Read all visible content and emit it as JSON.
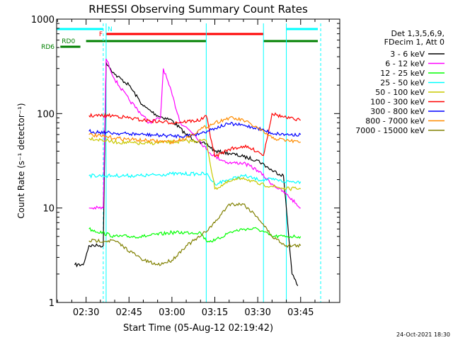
{
  "chart_data": {
    "type": "line",
    "title": "RHESSI Observing Summary Count Rates",
    "xlabel": "Start Time (05-Aug-12 02:19:42)",
    "ylabel": "Count Rate (s⁻¹ detector⁻¹)",
    "y_scale": "log",
    "ylim": [
      1,
      1000
    ],
    "xlim": [
      "02:19:42",
      "03:58:40"
    ],
    "x_ticks": [
      "02:30",
      "02:45",
      "03:00",
      "03:15",
      "03:30",
      "03:45"
    ],
    "y_ticks": [
      "1",
      "10",
      "100",
      "1000"
    ],
    "legend_header": [
      "Det 1,3,5,6,9,",
      "FDecim 1, Att 0"
    ],
    "legend_position": "right",
    "timestamp": "24-Oct-2021 18:30",
    "series": [
      {
        "name": "3 - 6 keV",
        "color": "#000000",
        "x": [
          "02:26:00",
          "02:29:00",
          "02:31:00",
          "02:34:00",
          "02:36:00",
          "02:37:00",
          "02:40:00",
          "02:45:00",
          "02:50:00",
          "02:55:00",
          "03:00:00",
          "03:05:00",
          "03:10:00",
          "03:12:00",
          "03:15:00",
          "03:20:00",
          "03:25:00",
          "03:30:00",
          "03:35:00",
          "03:39:00",
          "03:42:00",
          "03:44:00"
        ],
        "y": [
          2.5,
          2.5,
          4,
          4,
          4,
          350,
          260,
          200,
          120,
          95,
          85,
          60,
          48,
          48,
          40,
          38,
          35,
          32,
          25,
          22,
          2,
          1.5
        ]
      },
      {
        "name": "6 - 12 keV",
        "color": "#ff00ff",
        "x": [
          "02:31:00",
          "02:36:00",
          "02:37:00",
          "02:40:00",
          "02:45:00",
          "02:52:00",
          "02:56:00",
          "02:57:00",
          "02:59:00",
          "03:03:00",
          "03:08:00",
          "03:12:00",
          "03:15:00",
          "03:20:00",
          "03:25:00",
          "03:30:00",
          "03:35:00",
          "03:40:00",
          "03:45:00"
        ],
        "y": [
          10,
          10,
          380,
          230,
          140,
          80,
          90,
          300,
          200,
          80,
          60,
          42,
          35,
          30,
          30,
          25,
          18,
          14,
          10
        ]
      },
      {
        "name": "12 - 25 keV",
        "color": "#00ff00",
        "x": [
          "02:31:00",
          "02:40:00",
          "02:50:00",
          "03:00:00",
          "03:10:00",
          "03:12:00",
          "03:15:00",
          "03:20:00",
          "03:25:00",
          "03:30:00",
          "03:35:00",
          "03:40:00",
          "03:45:00"
        ],
        "y": [
          6,
          5,
          5,
          5.5,
          5.5,
          4.5,
          4.5,
          5.5,
          6,
          6,
          5,
          5,
          5
        ]
      },
      {
        "name": "25 - 50 keV",
        "color": "#00ffff",
        "x": [
          "02:31:00",
          "02:40:00",
          "02:50:00",
          "03:00:00",
          "03:12:00",
          "03:15:00",
          "03:20:00",
          "03:25:00",
          "03:30:00",
          "03:35:00",
          "03:40:00",
          "03:45:00"
        ],
        "y": [
          22,
          22,
          22,
          23,
          23,
          18,
          20,
          22,
          20,
          20,
          19,
          19
        ]
      },
      {
        "name": "50 - 100 keV",
        "color": "#c8c800",
        "x": [
          "02:31:00",
          "02:40:00",
          "02:50:00",
          "03:00:00",
          "03:12:00",
          "03:15:00",
          "03:20:00",
          "03:25:00",
          "03:30:00",
          "03:35:00",
          "03:40:00",
          "03:45:00"
        ],
        "y": [
          55,
          50,
          48,
          50,
          52,
          16,
          19,
          21,
          18,
          17,
          16,
          16
        ]
      },
      {
        "name": "100 - 300 keV",
        "color": "#ff0000",
        "x": [
          "02:31:00",
          "02:40:00",
          "02:50:00",
          "03:00:00",
          "03:10:00",
          "03:12:00",
          "03:15:00",
          "03:20:00",
          "03:25:00",
          "03:30:00",
          "03:32:00",
          "03:35:00",
          "03:40:00",
          "03:45:00"
        ],
        "y": [
          95,
          95,
          85,
          80,
          85,
          95,
          35,
          42,
          45,
          40,
          36,
          100,
          90,
          85
        ]
      },
      {
        "name": "300 - 800 keV",
        "color": "#0000ff",
        "x": [
          "02:31:00",
          "02:40:00",
          "02:50:00",
          "03:00:00",
          "03:05:00",
          "03:10:00",
          "03:15:00",
          "03:20:00",
          "03:25:00",
          "03:30:00",
          "03:35:00",
          "03:40:00",
          "03:45:00"
        ],
        "y": [
          65,
          62,
          60,
          58,
          58,
          62,
          70,
          78,
          75,
          70,
          62,
          60,
          60
        ]
      },
      {
        "name": "800 - 7000 keV",
        "color": "#ff8c00",
        "x": [
          "02:31:00",
          "02:40:00",
          "02:50:00",
          "03:00:00",
          "03:05:00",
          "03:10:00",
          "03:15:00",
          "03:20:00",
          "03:25:00",
          "03:30:00",
          "03:35:00",
          "03:40:00",
          "03:45:00"
        ],
        "y": [
          60,
          55,
          52,
          50,
          55,
          68,
          80,
          90,
          85,
          70,
          55,
          52,
          50
        ]
      },
      {
        "name": "7000 - 15000 keV",
        "color": "#808000",
        "x": [
          "02:31:00",
          "02:40:00",
          "02:50:00",
          "02:55:00",
          "03:00:00",
          "03:05:00",
          "03:10:00",
          "03:15:00",
          "03:20:00",
          "03:25:00",
          "03:30:00",
          "03:35:00",
          "03:40:00",
          "03:45:00"
        ],
        "y": [
          4.5,
          4.5,
          2.8,
          2.5,
          2.8,
          4,
          5,
          7,
          11,
          11,
          8,
          5,
          4,
          4
        ]
      }
    ],
    "flag_bars": [
      {
        "label": "",
        "color": "#00ffff",
        "segments": [
          [
            "02:19:42",
            "02:36:00"
          ],
          [
            "03:40:00",
            "03:51:00"
          ]
        ]
      },
      {
        "label": "N",
        "color": "#00ffff",
        "segments": []
      },
      {
        "label": "F",
        "color": "#ff0000",
        "segments": [
          [
            "02:37:00",
            "03:32:00"
          ]
        ]
      },
      {
        "label": "RD0",
        "color": "#008000",
        "segments": [
          [
            "02:30:00",
            "03:12:00"
          ],
          [
            "03:32:00",
            "03:51:00"
          ]
        ]
      },
      {
        "label": "RD6",
        "color": "#008000",
        "segments": [
          [
            "02:21:00",
            "02:28:00"
          ]
        ]
      }
    ],
    "vertical_markers": [
      {
        "color": "#00ffff",
        "style": "solid",
        "x": [
          "02:37:00",
          "03:12:00",
          "03:32:00",
          "03:40:00"
        ]
      },
      {
        "color": "#00ffff",
        "style": "dashed",
        "x": [
          "02:36:00",
          "03:52:00"
        ]
      }
    ]
  }
}
